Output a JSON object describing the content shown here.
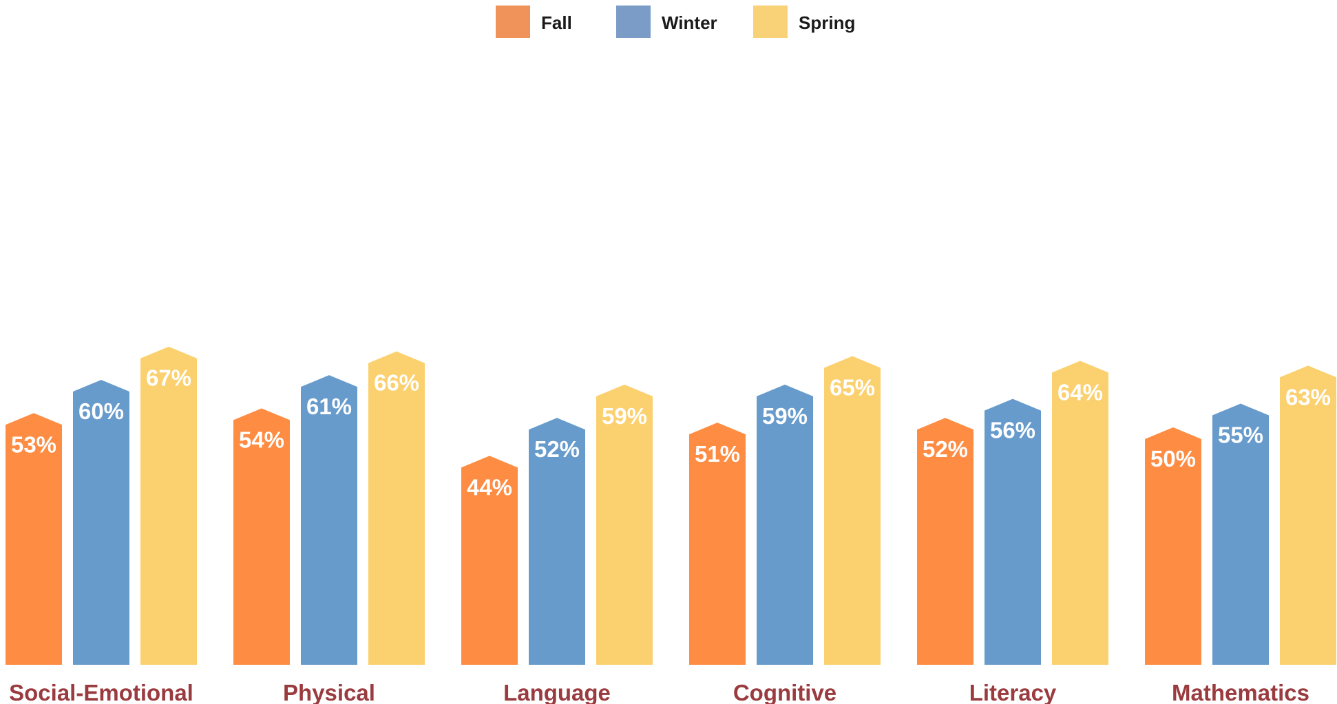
{
  "chart_data": {
    "type": "bar",
    "categories": [
      "Social-Emotional",
      "Physical",
      "Language",
      "Cognitive",
      "Literacy",
      "Mathematics"
    ],
    "series": [
      {
        "name": "Fall",
        "color": "#fe8c42",
        "legend_color": "#f0935b",
        "values": [
          53,
          54,
          44,
          51,
          52,
          50
        ]
      },
      {
        "name": "Winter",
        "color": "#679bcb",
        "legend_color": "#7a9cc7",
        "values": [
          60,
          61,
          52,
          59,
          56,
          55
        ]
      },
      {
        "name": "Spring",
        "color": "#fbd06f",
        "legend_color": "#f9d277",
        "values": [
          67,
          66,
          59,
          65,
          64,
          63
        ]
      }
    ],
    "value_suffix": "%",
    "title": "",
    "xlabel": "",
    "ylabel": "",
    "ylim": [
      0,
      100
    ],
    "grid": false,
    "legend_position": "top-center",
    "category_label_color": "#9a3b3f"
  }
}
